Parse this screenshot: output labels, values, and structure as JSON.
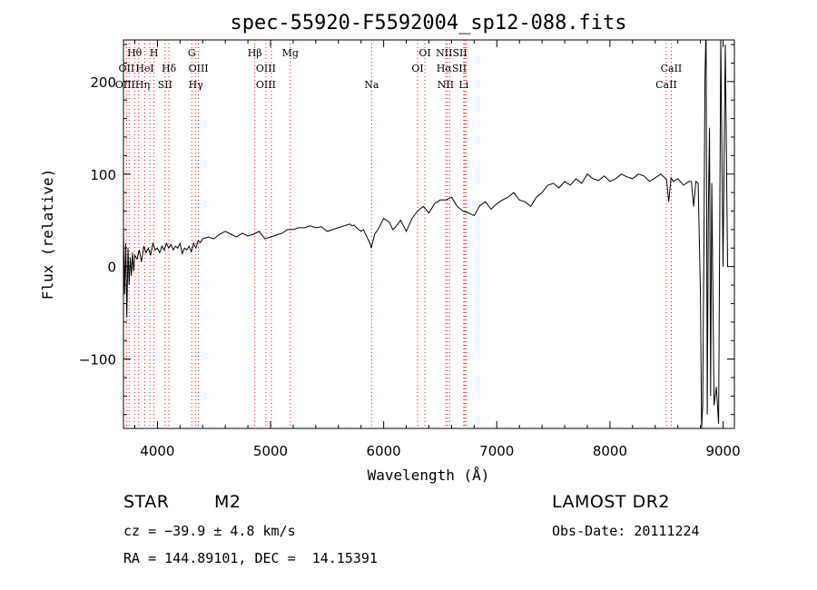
{
  "chart_data": {
    "type": "line",
    "title": "spec-55920-F5592004_sp12-088.fits",
    "xlabel": "Wavelength (Å)",
    "ylabel": "Flux (relative)",
    "xlim": [
      3700,
      9100
    ],
    "ylim": [
      -175,
      245
    ],
    "x_ticks": [
      4000,
      5000,
      6000,
      7000,
      8000,
      9000
    ],
    "x_tick_labels": [
      "4000",
      "5000",
      "6000",
      "7000",
      "8000",
      "9000"
    ],
    "y_ticks": [
      -100,
      0,
      100,
      200
    ],
    "y_tick_labels": [
      "−100",
      "0",
      "100",
      "200"
    ],
    "grid": false,
    "line_color": "#000000",
    "marker_color": "#ff0000",
    "series": [
      {
        "x": [
          3700,
          3710,
          3720,
          3730,
          3740,
          3750,
          3760,
          3770,
          3780,
          3790,
          3800,
          3820,
          3840,
          3860,
          3880,
          3900,
          3920,
          3940,
          3960,
          3980,
          4000,
          4020,
          4040,
          4060,
          4080,
          4100,
          4120,
          4140,
          4160,
          4180,
          4200,
          4220,
          4240,
          4260,
          4280,
          4300,
          4320,
          4340,
          4360,
          4380,
          4400,
          4450,
          4500,
          4550,
          4600,
          4650,
          4700,
          4750,
          4800,
          4850,
          4900,
          4950,
          5000,
          5050,
          5100,
          5150,
          5200,
          5250,
          5300,
          5350,
          5400,
          5450,
          5500,
          5550,
          5600,
          5650,
          5700,
          5720,
          5740,
          5760,
          5780,
          5800,
          5820,
          5840,
          5860,
          5880,
          5890,
          5900,
          5920,
          5950,
          6000,
          6050,
          6080,
          6100,
          6150,
          6200,
          6250,
          6300,
          6350,
          6400,
          6450,
          6500,
          6550,
          6600,
          6650,
          6700,
          6750,
          6800,
          6850,
          6900,
          6950,
          7000,
          7050,
          7100,
          7150,
          7200,
          7250,
          7300,
          7350,
          7400,
          7450,
          7500,
          7550,
          7600,
          7650,
          7700,
          7750,
          7800,
          7850,
          7900,
          7950,
          8000,
          8050,
          8100,
          8150,
          8200,
          8250,
          8300,
          8350,
          8400,
          8450,
          8500,
          8520,
          8540,
          8560,
          8600,
          8650,
          8700,
          8720,
          8740,
          8760,
          8780,
          8800,
          8810,
          8820,
          8830,
          8840,
          8850,
          8860,
          8870,
          8880,
          8890,
          8900,
          8920,
          8940,
          8960,
          8980,
          9000,
          9020,
          9040
        ],
        "y": [
          40,
          -30,
          25,
          -55,
          20,
          -20,
          10,
          -10,
          15,
          -5,
          12,
          8,
          18,
          5,
          22,
          15,
          20,
          12,
          25,
          18,
          20,
          15,
          22,
          18,
          25,
          20,
          24,
          18,
          22,
          20,
          25,
          14,
          20,
          18,
          22,
          16,
          25,
          20,
          28,
          26,
          30,
          32,
          30,
          35,
          38,
          35,
          32,
          36,
          33,
          35,
          38,
          30,
          32,
          34,
          36,
          40,
          40,
          42,
          42,
          44,
          42,
          43,
          38,
          40,
          42,
          44,
          46,
          44,
          45,
          42,
          40,
          38,
          40,
          35,
          30,
          25,
          20,
          25,
          35,
          40,
          52,
          48,
          40,
          42,
          50,
          38,
          52,
          60,
          65,
          58,
          68,
          72,
          72,
          75,
          65,
          60,
          58,
          55,
          66,
          70,
          62,
          68,
          72,
          75,
          80,
          72,
          70,
          65,
          75,
          80,
          88,
          90,
          85,
          92,
          88,
          95,
          90,
          100,
          95,
          93,
          98,
          92,
          95,
          100,
          97,
          95,
          100,
          98,
          92,
          96,
          100,
          94,
          70,
          96,
          92,
          95,
          88,
          92,
          92,
          65,
          92,
          90,
          -30,
          -175,
          -150,
          20,
          205,
          260,
          -160,
          60,
          150,
          -140,
          90,
          -150,
          -130,
          -170,
          245,
          0,
          240,
          0
        ]
      }
    ],
    "emission_markers": [
      {
        "label": "Hθ",
        "wave": 3798,
        "row": 1
      },
      {
        "label": "H",
        "wave": 3970,
        "row": 1
      },
      {
        "label": "G",
        "wave": 4304,
        "row": 1
      },
      {
        "label": "Hβ",
        "wave": 4861,
        "row": 1
      },
      {
        "label": "Mg",
        "wave": 5175,
        "row": 1
      },
      {
        "label": "OI",
        "wave": 6364,
        "row": 1
      },
      {
        "label": "NIISII",
        "wave": 6600,
        "row": 1
      },
      {
        "label": "OII",
        "wave": 3727,
        "row": 2
      },
      {
        "label": "HeI",
        "wave": 3889,
        "row": 2
      },
      {
        "label": "Hδ",
        "wave": 4102,
        "row": 2
      },
      {
        "label": "OIII",
        "wave": 4363,
        "row": 2
      },
      {
        "label": "OIII",
        "wave": 4959,
        "row": 2
      },
      {
        "label": "OI",
        "wave": 6300,
        "row": 2
      },
      {
        "label": "HαSII",
        "wave": 6600,
        "row": 2
      },
      {
        "label": "CaII",
        "wave": 8542,
        "row": 2
      },
      {
        "label": "OIIIHη",
        "wave": 3780,
        "row": 3
      },
      {
        "label": "SII",
        "wave": 4068,
        "row": 3
      },
      {
        "label": "Hγ",
        "wave": 4340,
        "row": 3
      },
      {
        "label": "OIII",
        "wave": 4959,
        "row": 3
      },
      {
        "label": "Na",
        "wave": 5893,
        "row": 3
      },
      {
        "label": "NII",
        "wave": 6548,
        "row": 3
      },
      {
        "label": "Li",
        "wave": 6708,
        "row": 3
      },
      {
        "label": "CaII",
        "wave": 8498,
        "row": 3
      }
    ],
    "marker_lines": [
      3727,
      3750,
      3798,
      3835,
      3889,
      3933,
      3970,
      4068,
      4102,
      4304,
      4340,
      4363,
      4861,
      4959,
      5007,
      5175,
      5893,
      6300,
      6364,
      6548,
      6563,
      6583,
      6708,
      6717,
      6731,
      8498,
      8542
    ]
  },
  "info": {
    "object_class": "STAR",
    "subclass": "M2",
    "survey": "LAMOST DR2",
    "redshift": "cz = −39.9 ± 4.8 km/s",
    "obs_date": "Obs-Date: 20111224",
    "coords": "RA = 144.89101, DEC =  14.15391"
  }
}
